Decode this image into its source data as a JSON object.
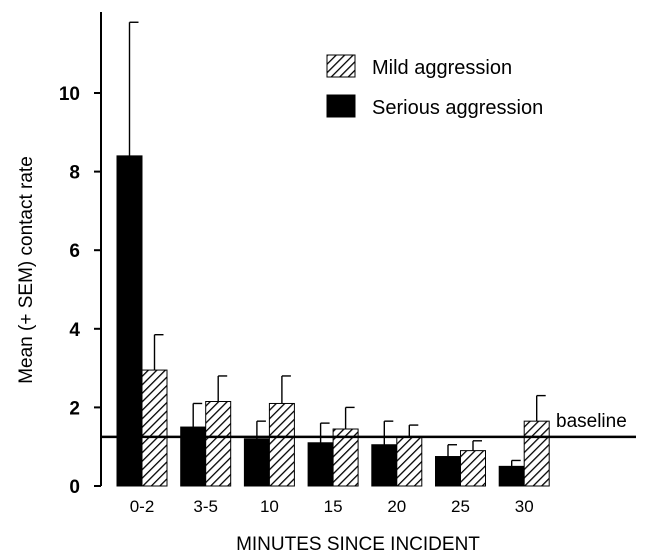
{
  "chart_data": {
    "type": "bar",
    "title": "",
    "xlabel": "MINUTES SINCE INCIDENT",
    "ylabel": "Mean (+ SEM) contact rate",
    "ylim": [
      0,
      12
    ],
    "yticks": [
      0,
      2,
      4,
      6,
      8,
      10
    ],
    "categories": [
      "0-2",
      "3-5",
      "10",
      "15",
      "20",
      "25",
      "30"
    ],
    "series": [
      {
        "name": "Serious aggression",
        "fill": "solid",
        "color": "#000000",
        "values": [
          8.4,
          1.5,
          1.2,
          1.1,
          1.05,
          0.75,
          0.5
        ],
        "errors": [
          3.4,
          0.6,
          0.45,
          0.5,
          0.6,
          0.3,
          0.15
        ]
      },
      {
        "name": "Mild aggression",
        "fill": "hatched",
        "color": "#000000",
        "values": [
          2.95,
          2.15,
          2.1,
          1.45,
          1.25,
          0.9,
          1.65
        ],
        "errors": [
          0.9,
          0.65,
          0.7,
          0.55,
          0.3,
          0.25,
          0.65
        ]
      }
    ],
    "reference_line": {
      "label": "baseline",
      "value": 1.25
    },
    "legend": {
      "placement": "top-right",
      "items": [
        "Mild aggression",
        "Serious aggression"
      ]
    },
    "grid": false
  }
}
